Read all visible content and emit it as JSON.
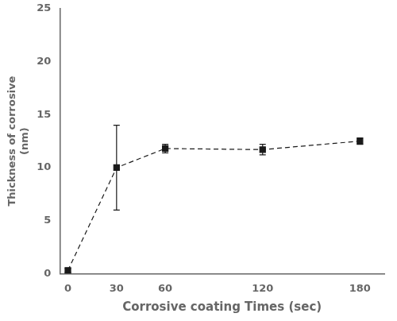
{
  "chart_data": {
    "type": "line",
    "x": [
      0,
      30,
      60,
      120,
      180
    ],
    "values": [
      0.3,
      10.0,
      11.8,
      11.7,
      12.5
    ],
    "yerr": [
      0.2,
      4.0,
      0.4,
      0.5,
      0.3
    ],
    "xlabel": "Corrosive coating Times (sec)",
    "ylabel": "Thickness of corrosive\n(nm)",
    "xlim": [
      -5,
      195
    ],
    "ylim": [
      0,
      25
    ],
    "xticks": [
      0,
      30,
      60,
      120,
      180
    ],
    "yticks": [
      0,
      5,
      10,
      15,
      20,
      25
    ],
    "color": "#1a1a1a",
    "marker": "square",
    "line_style": "dashed",
    "grid": false
  }
}
